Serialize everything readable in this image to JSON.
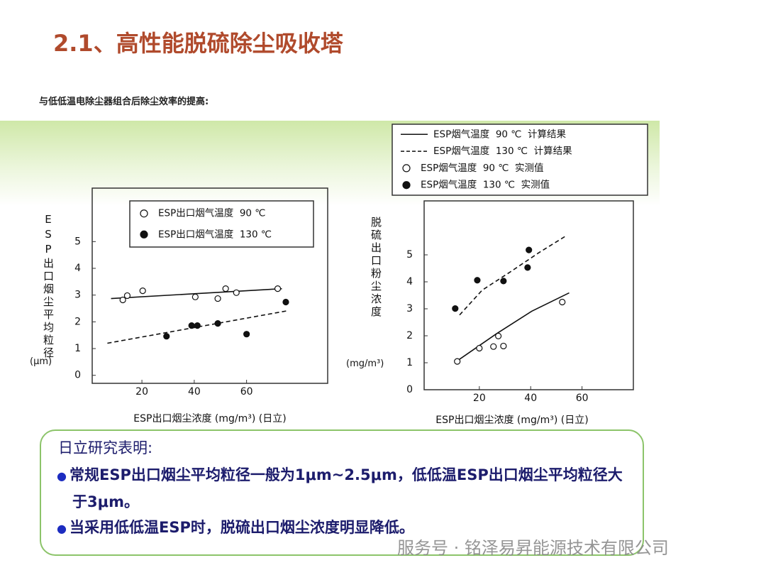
{
  "title": "2.1、高性能脱硫除尘吸收塔",
  "subtitle": "与低低温电除尘器组合后除尘效率的提高:",
  "chart_data": [
    {
      "type": "scatter",
      "y_label": "ESP出口烟尘平均粒径",
      "y_unit": "(μm)",
      "x_label": "ESP出口烟尘浓度 (mg/m³) (日立)",
      "xlim": [
        1,
        91
      ],
      "xticks": [
        20,
        40,
        60
      ],
      "ylim": [
        -0.3,
        7
      ],
      "yticks": [
        0,
        1,
        2,
        3,
        4,
        5
      ],
      "legend": "inside-top",
      "series": [
        {
          "line": "solid",
          "color": "#111111",
          "x": [
            8.2,
            73.5
          ],
          "values": [
            2.87,
            3.24
          ]
        },
        {
          "line": "dashed",
          "color": "#111111",
          "x": [
            6.8,
            76
          ],
          "values": [
            1.2,
            2.42
          ]
        },
        {
          "name": "ESP出口烟气温度  90 ℃",
          "marker": "open",
          "color": "#111111",
          "x": [
            12.7,
            14.4,
            20.3,
            40.4,
            49,
            52,
            56.1,
            71.9
          ],
          "values": [
            2.82,
            2.98,
            3.16,
            2.93,
            2.87,
            3.24,
            3.09,
            3.24
          ]
        },
        {
          "name": "ESP出口烟气温度  130 ℃",
          "marker": "filled",
          "color": "#111111",
          "x": [
            29.4,
            39,
            41.2,
            49,
            60,
            75
          ],
          "values": [
            1.46,
            1.86,
            1.86,
            1.94,
            1.54,
            2.74
          ]
        }
      ]
    },
    {
      "type": "scatter",
      "y_label": "脱硫出口粉尘浓度",
      "y_unit": "(mg/m³)",
      "x_label": "ESP出口烟尘浓度 (mg/m³) (日立)",
      "xlim": [
        -1.5,
        80
      ],
      "xticks": [
        20,
        40,
        60
      ],
      "ylim": [
        0,
        7
      ],
      "yticks": [
        0,
        1,
        2,
        3,
        4,
        5
      ],
      "legend": "outside-top",
      "series": [
        {
          "name": "ESP烟气温度  90 ℃  计算结果",
          "line": "solid",
          "color": "#111111",
          "x": [
            11.4,
            26.6,
            40.4,
            55
          ],
          "values": [
            1.07,
            2.07,
            2.91,
            3.59
          ]
        },
        {
          "name": "ESP烟气温度  130 ℃  计算结果",
          "line": "dashed",
          "color": "#111111",
          "x": [
            12.3,
            21.1,
            32.1,
            43.2,
            54.2
          ],
          "values": [
            2.77,
            3.69,
            4.37,
            5.08,
            5.73
          ]
        },
        {
          "name": "ESP烟气温度  90 ℃  实测值",
          "marker": "open",
          "color": "#111111",
          "x": [
            11.4,
            20,
            25.5,
            27.4,
            29.4,
            52.3
          ],
          "values": [
            1.05,
            1.54,
            1.6,
            1.99,
            1.62,
            3.25
          ]
        },
        {
          "name": "ESP烟气温度  130 ℃  实测值",
          "marker": "filled",
          "color": "#111111",
          "x": [
            10.6,
            19.2,
            29.4,
            38.8,
            39.3
          ],
          "values": [
            3.01,
            4.06,
            4.03,
            4.53,
            5.18
          ]
        }
      ]
    }
  ],
  "note": {
    "heading": "日立研究表明:",
    "bullets": [
      "常规ESP出口烟尘平均粒径一般为1μm~2.5μm，低低温ESP出口烟尘平均粒径大于3μm。",
      "当采用低低温ESP时，脱硫出口烟尘浓度明显降低。"
    ]
  },
  "watermark": "服务号 · 铭泽易昇能源技术有限公司"
}
